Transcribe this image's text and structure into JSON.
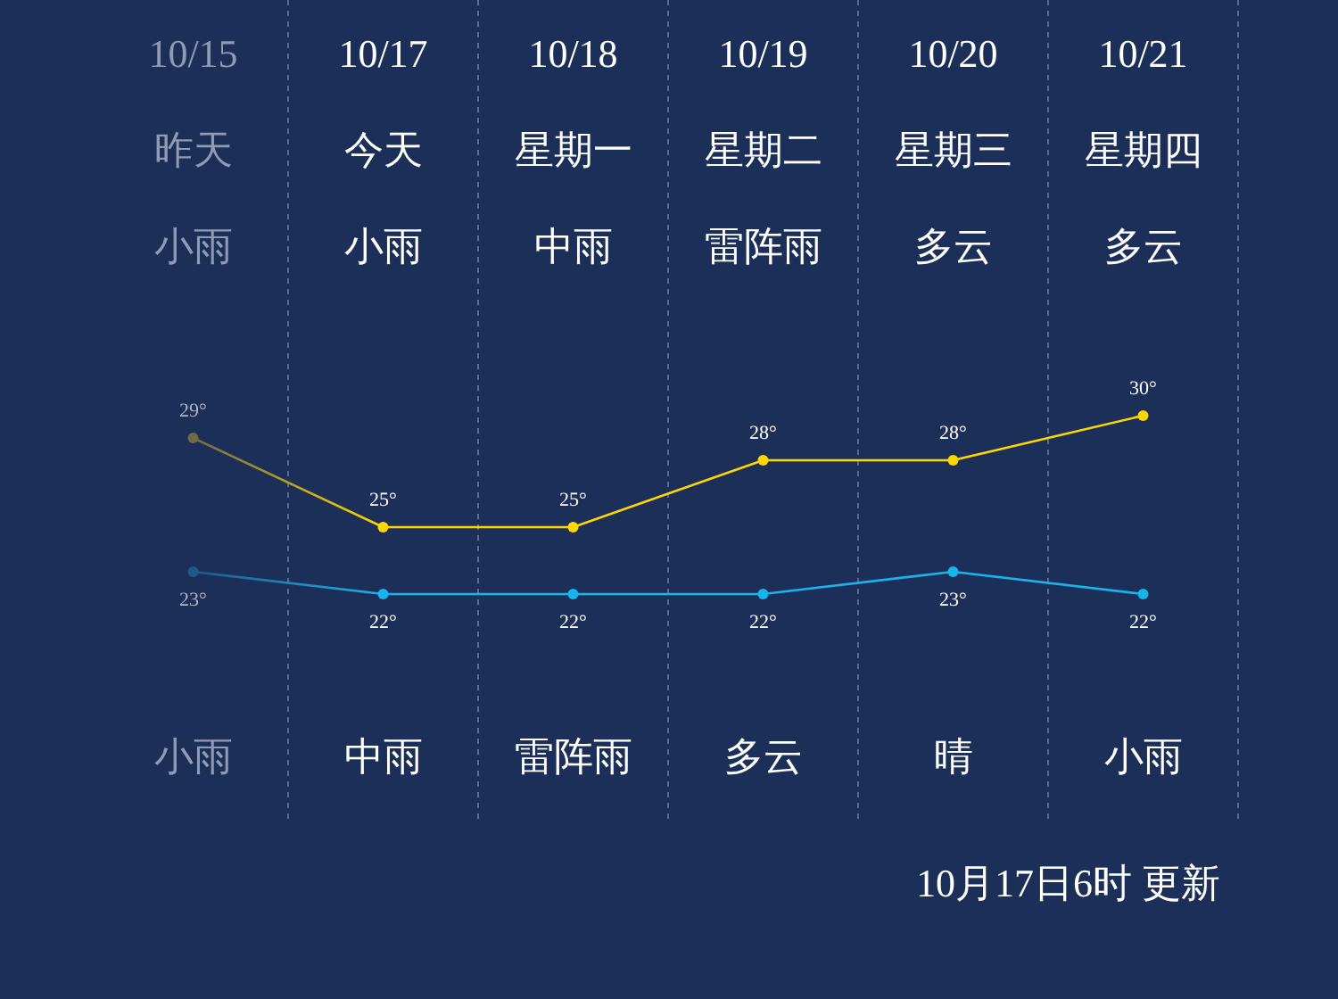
{
  "chart_data": {
    "type": "line",
    "categories": [
      "10/15",
      "10/17",
      "10/18",
      "10/19",
      "10/20",
      "10/21"
    ],
    "series": [
      {
        "color": "#ffd700",
        "colors": [
          "#6b6b45",
          "#ffd700",
          "#ffd700",
          "#ffd700",
          "#ffd700",
          "#ffd700"
        ],
        "values": [
          29,
          25,
          25,
          28,
          28,
          30
        ],
        "value_labels": [
          "29°",
          "25°",
          "25°",
          "28°",
          "28°",
          "30°"
        ]
      },
      {
        "color": "#1ab4ec",
        "colors": [
          "#1d5a8a",
          "#1ab4ec",
          "#1ab4ec",
          "#1ab4ec",
          "#1ab4ec",
          "#1ab4ec"
        ],
        "values": [
          23,
          22,
          22,
          22,
          23,
          22
        ],
        "value_labels": [
          "23°",
          "22°",
          "22°",
          "22°",
          "23°",
          "22°"
        ]
      }
    ],
    "annotations": [
      "昨天",
      "今天",
      "星期一",
      "星期二",
      "星期三",
      "星期四",
      "小雨",
      "小雨",
      "中雨",
      "雷阵雨",
      "多云",
      "多云",
      "小雨",
      "中雨",
      "雷阵雨",
      "多云",
      "晴",
      "小雨",
      "10月17日6时 更新"
    ],
    "grid": "x",
    "marker": "circle"
  }
}
